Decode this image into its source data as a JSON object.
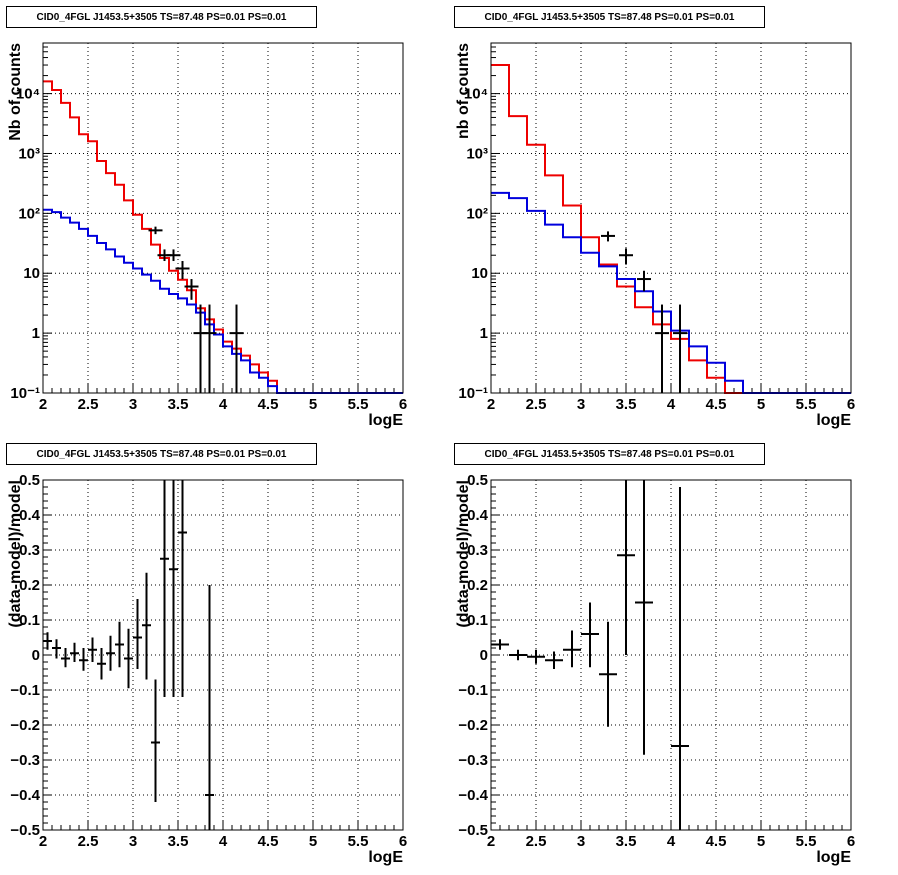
{
  "colors": {
    "data": "#000000",
    "model_total": "#ee0000",
    "model_bkg": "#0000dd",
    "grid": "#000000"
  },
  "chart_data": [
    {
      "type": "line",
      "subtype": "step-histogram-log",
      "title": "CID0_4FGL J1453.5+3505 TS=87.48 PS=0.01 PS=0.01",
      "xlabel": "logE",
      "ylabel": "Nb of counts",
      "xlim": [
        2,
        6
      ],
      "ylim": [
        0.1,
        70000
      ],
      "yscale": "log",
      "grid": true,
      "xticks": [
        "2",
        "2.5",
        "3",
        "3.5",
        "4",
        "4.5",
        "5",
        "5.5",
        "6"
      ],
      "yticks": [
        {
          "v": 0.1,
          "label": "10⁻¹"
        },
        {
          "v": 1,
          "label": "1"
        },
        {
          "v": 10,
          "label": "10"
        },
        {
          "v": 100,
          "label": "10²"
        },
        {
          "v": 1000,
          "label": "10³"
        },
        {
          "v": 10000,
          "label": "10⁴"
        }
      ],
      "bin_edges": [
        2.0,
        2.1,
        2.2,
        2.3,
        2.4,
        2.5,
        2.6,
        2.7,
        2.8,
        2.9,
        3.0,
        3.1,
        3.2,
        3.3,
        3.4,
        3.5,
        3.6,
        3.7,
        3.8,
        3.9,
        4.0,
        4.1,
        4.2,
        4.3,
        4.4,
        4.5,
        4.6,
        4.7,
        4.8,
        4.9,
        5.0,
        5.1,
        5.2,
        5.3,
        5.4,
        5.5,
        5.6,
        5.7,
        5.8,
        5.9,
        6.0
      ],
      "series": [
        {
          "name": "model_total",
          "style": "step",
          "color": "#ee0000",
          "values": [
            16000,
            11500,
            7000,
            4000,
            2100,
            1600,
            750,
            470,
            300,
            165,
            95,
            55,
            30,
            18,
            11,
            7.8,
            5.2,
            2.6,
            1.7,
            1.15,
            0.72,
            0.55,
            0.42,
            0.3,
            0.22,
            0.16,
            0.1,
            0.1,
            0.1,
            0.1,
            0.1,
            0.1,
            0.1,
            0.1,
            0.1,
            0.1,
            0.1,
            0.1,
            0.1,
            0.1
          ]
        },
        {
          "name": "model_bkg",
          "style": "step",
          "color": "#0000dd",
          "values": [
            115,
            105,
            85,
            70,
            55,
            42,
            32,
            25,
            19,
            15,
            12,
            9.5,
            7.5,
            5.5,
            4.5,
            3.8,
            3.0,
            2.2,
            1.4,
            0.95,
            0.6,
            0.45,
            0.35,
            0.22,
            0.18,
            0.13,
            0.1,
            0.1,
            0.1,
            0.1,
            0.1,
            0.1,
            0.1,
            0.1,
            0.1,
            0.1,
            0.1,
            0.1,
            0.1,
            0.1
          ]
        },
        {
          "name": "data",
          "style": "errorbar",
          "color": "#000000",
          "x": [
            3.25,
            3.35,
            3.45,
            3.55,
            3.65,
            3.75,
            3.85,
            4.15
          ],
          "y": [
            52,
            20,
            20,
            12,
            6,
            1,
            1,
            1
          ],
          "ylo": [
            45,
            16,
            16,
            8,
            3.6,
            0.1,
            0.1,
            0.1
          ],
          "yhi": [
            60,
            25,
            25,
            16,
            8,
            3,
            3,
            3
          ]
        }
      ]
    },
    {
      "type": "line",
      "subtype": "step-histogram-log",
      "title": "CID0_4FGL J1453.5+3505 TS=87.48 PS=0.01 PS=0.01",
      "xlabel": "logE",
      "ylabel": "nb of counts",
      "xlim": [
        2,
        6
      ],
      "ylim": [
        0.1,
        70000
      ],
      "yscale": "log",
      "grid": true,
      "xticks": [
        "2",
        "2.5",
        "3",
        "3.5",
        "4",
        "4.5",
        "5",
        "5.5",
        "6"
      ],
      "yticks": [
        {
          "v": 0.1,
          "label": "10⁻¹"
        },
        {
          "v": 1,
          "label": "1"
        },
        {
          "v": 10,
          "label": "10"
        },
        {
          "v": 100,
          "label": "10²"
        },
        {
          "v": 1000,
          "label": "10³"
        },
        {
          "v": 10000,
          "label": "10⁴"
        }
      ],
      "bin_edges": [
        2.0,
        2.2,
        2.4,
        2.6,
        2.8,
        3.0,
        3.2,
        3.4,
        3.6,
        3.8,
        4.0,
        4.2,
        4.4,
        4.6,
        4.8,
        5.0,
        5.2,
        5.4,
        5.6,
        5.8,
        6.0
      ],
      "series": [
        {
          "name": "model_total",
          "style": "step",
          "color": "#ee0000",
          "values": [
            30000,
            4200,
            1400,
            430,
            135,
            40,
            14,
            6,
            2.7,
            1.4,
            0.8,
            0.35,
            0.18,
            0.1,
            0.1,
            0.1,
            0.1,
            0.1,
            0.1,
            0.1
          ]
        },
        {
          "name": "model_bkg",
          "style": "step",
          "color": "#0000dd",
          "values": [
            220,
            180,
            110,
            65,
            40,
            22,
            13,
            8,
            5,
            2.3,
            1.1,
            0.6,
            0.32,
            0.16,
            0.1,
            0.1,
            0.1,
            0.1,
            0.1,
            0.1
          ]
        },
        {
          "name": "data",
          "style": "errorbar",
          "color": "#000000",
          "x": [
            3.3,
            3.5,
            3.7,
            3.9,
            4.1
          ],
          "y": [
            42,
            20,
            8,
            1,
            1
          ],
          "ylo": [
            34,
            14,
            5,
            0.1,
            0.1
          ],
          "yhi": [
            50,
            26,
            11,
            3,
            3
          ]
        }
      ]
    },
    {
      "type": "scatter",
      "subtype": "residual-errorbar",
      "title": "CID0_4FGL J1453.5+3505 TS=87.48 PS=0.01 PS=0.01",
      "xlabel": "logE",
      "ylabel": "(data-model)/model",
      "xlim": [
        2,
        6
      ],
      "ylim": [
        -0.5,
        0.5
      ],
      "grid": true,
      "xticks": [
        "2",
        "2.5",
        "3",
        "3.5",
        "4",
        "4.5",
        "5",
        "5.5",
        "6"
      ],
      "yticks": [
        {
          "v": -0.5,
          "label": "−0.5"
        },
        {
          "v": -0.4,
          "label": "−0.4"
        },
        {
          "v": -0.3,
          "label": "−0.3"
        },
        {
          "v": -0.2,
          "label": "−0.2"
        },
        {
          "v": -0.1,
          "label": "−0.1"
        },
        {
          "v": 0,
          "label": "0"
        },
        {
          "v": 0.1,
          "label": "0.1"
        },
        {
          "v": 0.2,
          "label": "0.2"
        },
        {
          "v": 0.3,
          "label": "0.3"
        },
        {
          "v": 0.4,
          "label": "0.4"
        },
        {
          "v": 0.5,
          "label": "0.5"
        }
      ],
      "xerr": 0.05,
      "series": [
        {
          "name": "residuals",
          "color": "#000000",
          "x": [
            2.05,
            2.15,
            2.25,
            2.35,
            2.45,
            2.55,
            2.65,
            2.75,
            2.85,
            2.95,
            3.05,
            3.15,
            3.25,
            3.35,
            3.45,
            3.55,
            3.85
          ],
          "y": [
            0.04,
            0.02,
            -0.01,
            0.005,
            -0.015,
            0.015,
            -0.025,
            0.005,
            0.03,
            -0.01,
            0.05,
            0.085,
            -0.25,
            0.275,
            0.245,
            0.35,
            -0.4
          ],
          "ylo": [
            0.015,
            -0.01,
            -0.035,
            -0.02,
            -0.045,
            -0.02,
            -0.07,
            -0.045,
            -0.035,
            -0.095,
            -0.04,
            -0.07,
            -0.42,
            -0.12,
            -0.12,
            -0.12,
            -0.5
          ],
          "yhi": [
            0.065,
            0.045,
            0.02,
            0.035,
            0.02,
            0.05,
            0.02,
            0.055,
            0.095,
            0.075,
            0.16,
            0.235,
            -0.07,
            0.5,
            0.5,
            0.5,
            0.2
          ]
        }
      ]
    },
    {
      "type": "scatter",
      "subtype": "residual-errorbar",
      "title": "CID0_4FGL J1453.5+3505 TS=87.48 PS=0.01 PS=0.01",
      "xlabel": "logE",
      "ylabel": "(data-model)/model",
      "xlim": [
        2,
        6
      ],
      "ylim": [
        -0.5,
        0.5
      ],
      "grid": true,
      "xticks": [
        "2",
        "2.5",
        "3",
        "3.5",
        "4",
        "4.5",
        "5",
        "5.5",
        "6"
      ],
      "yticks": [
        {
          "v": -0.5,
          "label": "−0.5"
        },
        {
          "v": -0.4,
          "label": "−0.4"
        },
        {
          "v": -0.3,
          "label": "−0.3"
        },
        {
          "v": -0.2,
          "label": "−0.2"
        },
        {
          "v": -0.1,
          "label": "−0.1"
        },
        {
          "v": 0,
          "label": "0"
        },
        {
          "v": 0.1,
          "label": "0.1"
        },
        {
          "v": 0.2,
          "label": "0.2"
        },
        {
          "v": 0.3,
          "label": "0.3"
        },
        {
          "v": 0.4,
          "label": "0.4"
        },
        {
          "v": 0.5,
          "label": "0.5"
        }
      ],
      "xerr": 0.1,
      "series": [
        {
          "name": "residuals",
          "color": "#000000",
          "x": [
            2.1,
            2.3,
            2.5,
            2.7,
            2.9,
            3.1,
            3.3,
            3.5,
            3.7,
            4.1
          ],
          "y": [
            0.03,
            0.0,
            -0.005,
            -0.015,
            0.015,
            0.06,
            -0.055,
            0.285,
            0.15,
            -0.26
          ],
          "ylo": [
            0.015,
            -0.015,
            -0.025,
            -0.04,
            -0.035,
            -0.035,
            -0.205,
            0.0,
            -0.285,
            -0.5
          ],
          "yhi": [
            0.045,
            0.015,
            0.015,
            0.01,
            0.07,
            0.15,
            0.095,
            0.5,
            0.5,
            0.48
          ]
        }
      ]
    }
  ]
}
